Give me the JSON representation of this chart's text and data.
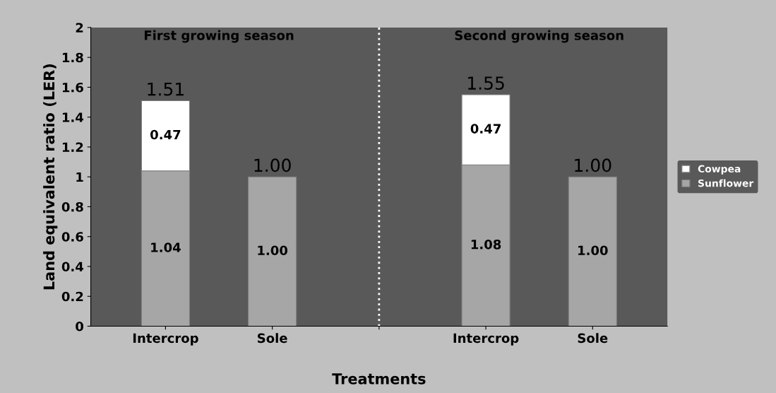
{
  "chart_data": {
    "type": "bar",
    "stacked": true,
    "xlabel": "Treatments",
    "ylabel": "Land equivalent ratio (LER)",
    "categories": [
      "Intercrop",
      "Sole",
      null,
      "Intercrop",
      "Sole"
    ],
    "series": [
      {
        "name": "Sunflower",
        "color": "#a6a6a6",
        "values": [
          1.04,
          1.0,
          null,
          1.08,
          1.0
        ],
        "value_labels": [
          "1.04",
          "1.00",
          null,
          "1.08",
          "1.00"
        ]
      },
      {
        "name": "Cowpea",
        "color": "#ffffff",
        "values": [
          0.47,
          null,
          null,
          0.47,
          null
        ],
        "value_labels": [
          "0.47",
          null,
          null,
          "0.47",
          null
        ]
      }
    ],
    "totals": [
      "1.51",
      "1.00",
      null,
      "1.55",
      "1.00"
    ],
    "ylim": [
      0,
      2
    ],
    "yticks": [
      0,
      0.2,
      0.4,
      0.6,
      0.8,
      1,
      1.2,
      1.4,
      1.6,
      1.8,
      2
    ],
    "annotations": [
      "First growing season",
      "Second growing season"
    ],
    "legend": "right"
  }
}
